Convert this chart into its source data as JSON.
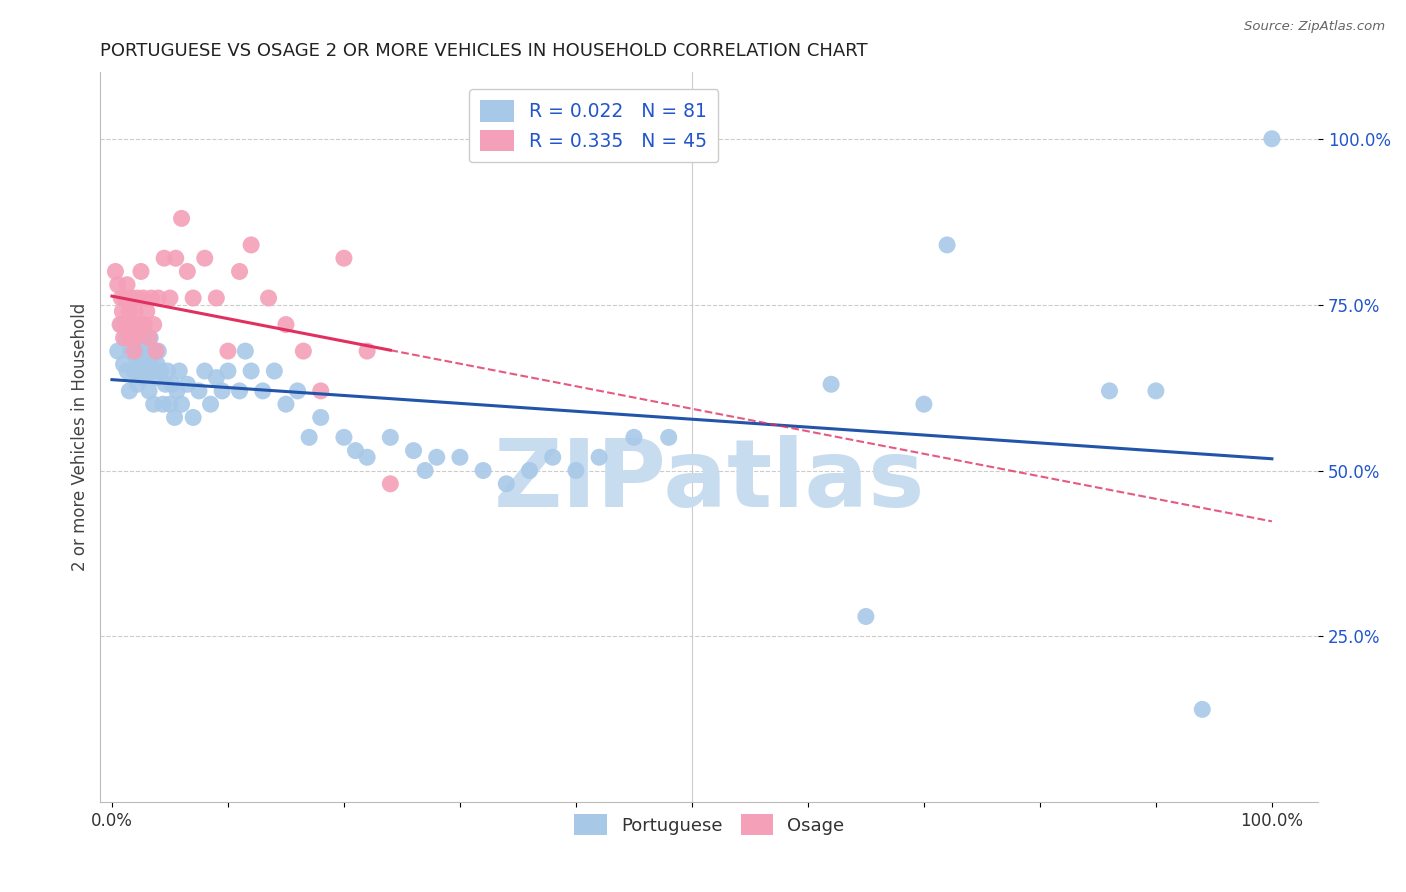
{
  "title": "PORTUGUESE VS OSAGE 2 OR MORE VEHICLES IN HOUSEHOLD CORRELATION CHART",
  "source": "Source: ZipAtlas.com",
  "ylabel": "2 or more Vehicles in Household",
  "ytick_positions": [
    0.25,
    0.5,
    0.75,
    1.0
  ],
  "yticklabels": [
    "25.0%",
    "50.0%",
    "75.0%",
    "100.0%"
  ],
  "blue_color": "#A8C8E8",
  "pink_color": "#F4A0B8",
  "blue_line_color": "#2255AA",
  "pink_line_color": "#E03060",
  "legend_color_blue": "#A8C8E8",
  "legend_color_pink": "#F4A0B8",
  "legend_R_blue": "R = 0.022",
  "legend_N_blue": "N = 81",
  "legend_R_pink": "R = 0.335",
  "legend_N_pink": "N = 45",
  "watermark_color": "#C8DCF0",
  "blue_x": [
    0.005,
    0.008,
    0.01,
    0.012,
    0.013,
    0.015,
    0.016,
    0.018,
    0.019,
    0.02,
    0.021,
    0.022,
    0.023,
    0.024,
    0.025,
    0.026,
    0.027,
    0.028,
    0.029,
    0.03,
    0.031,
    0.032,
    0.033,
    0.034,
    0.035,
    0.036,
    0.037,
    0.038,
    0.039,
    0.04,
    0.042,
    0.044,
    0.046,
    0.048,
    0.05,
    0.052,
    0.054,
    0.056,
    0.058,
    0.06,
    0.065,
    0.07,
    0.075,
    0.08,
    0.085,
    0.09,
    0.095,
    0.1,
    0.11,
    0.115,
    0.12,
    0.13,
    0.14,
    0.15,
    0.16,
    0.17,
    0.18,
    0.2,
    0.21,
    0.22,
    0.24,
    0.26,
    0.27,
    0.28,
    0.3,
    0.32,
    0.34,
    0.36,
    0.38,
    0.4,
    0.42,
    0.45,
    0.48,
    0.62,
    0.65,
    0.7,
    0.72,
    0.86,
    0.9,
    0.94,
    1.0
  ],
  "blue_y": [
    0.68,
    0.72,
    0.66,
    0.7,
    0.65,
    0.62,
    0.68,
    0.71,
    0.65,
    0.69,
    0.67,
    0.63,
    0.7,
    0.66,
    0.68,
    0.64,
    0.7,
    0.67,
    0.65,
    0.68,
    0.66,
    0.62,
    0.7,
    0.67,
    0.65,
    0.6,
    0.68,
    0.64,
    0.66,
    0.68,
    0.65,
    0.6,
    0.63,
    0.65,
    0.6,
    0.63,
    0.58,
    0.62,
    0.65,
    0.6,
    0.63,
    0.58,
    0.62,
    0.65,
    0.6,
    0.64,
    0.62,
    0.65,
    0.62,
    0.68,
    0.65,
    0.62,
    0.65,
    0.6,
    0.62,
    0.55,
    0.58,
    0.55,
    0.53,
    0.52,
    0.55,
    0.53,
    0.5,
    0.52,
    0.52,
    0.5,
    0.48,
    0.5,
    0.52,
    0.5,
    0.52,
    0.55,
    0.55,
    0.63,
    0.28,
    0.6,
    0.84,
    0.62,
    0.62,
    0.14,
    1.0
  ],
  "pink_x": [
    0.003,
    0.005,
    0.007,
    0.008,
    0.009,
    0.01,
    0.011,
    0.012,
    0.013,
    0.015,
    0.016,
    0.017,
    0.018,
    0.019,
    0.02,
    0.021,
    0.022,
    0.023,
    0.025,
    0.027,
    0.028,
    0.03,
    0.032,
    0.034,
    0.036,
    0.038,
    0.04,
    0.045,
    0.05,
    0.055,
    0.06,
    0.065,
    0.07,
    0.08,
    0.09,
    0.1,
    0.11,
    0.12,
    0.135,
    0.15,
    0.165,
    0.18,
    0.2,
    0.22,
    0.24
  ],
  "pink_y": [
    0.8,
    0.78,
    0.72,
    0.76,
    0.74,
    0.7,
    0.76,
    0.72,
    0.78,
    0.74,
    0.7,
    0.76,
    0.72,
    0.68,
    0.74,
    0.7,
    0.76,
    0.72,
    0.8,
    0.76,
    0.72,
    0.74,
    0.7,
    0.76,
    0.72,
    0.68,
    0.76,
    0.82,
    0.76,
    0.82,
    0.88,
    0.8,
    0.76,
    0.82,
    0.76,
    0.68,
    0.8,
    0.84,
    0.76,
    0.72,
    0.68,
    0.62,
    0.82,
    0.68,
    0.48
  ]
}
